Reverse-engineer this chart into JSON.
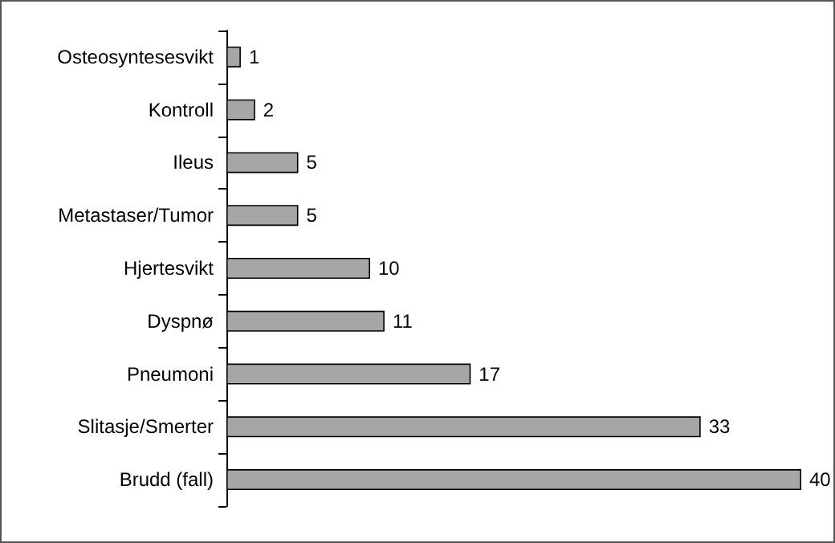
{
  "chart_data": {
    "type": "bar",
    "orientation": "horizontal",
    "categories": [
      "Osteosyntesesvikt",
      "Kontroll",
      "Ileus",
      "Metastaser/Tumor",
      "Hjertesvikt",
      "Dyspnø",
      "Pneumoni",
      "Slitasje/Smerter",
      "Brudd (fall)"
    ],
    "values": [
      1,
      2,
      5,
      5,
      10,
      11,
      17,
      33,
      40
    ],
    "color": "#a6a6a6",
    "data_labels": true
  }
}
